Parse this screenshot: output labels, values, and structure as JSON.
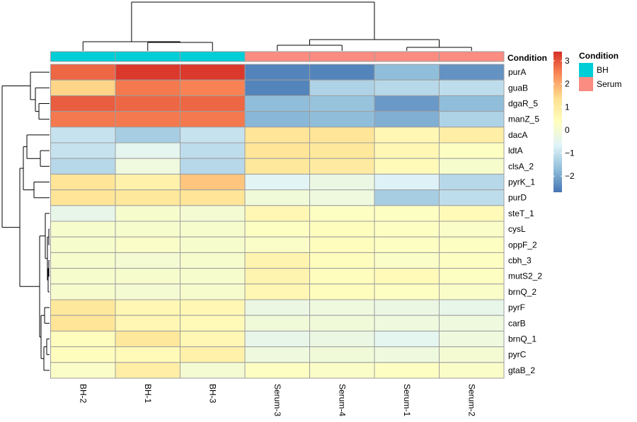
{
  "chart_data": {
    "type": "heatmap",
    "columns": [
      "BH-2",
      "BH-1",
      "BH-3",
      "Serum-3",
      "Serum-4",
      "Serum-1",
      "Serum-2"
    ],
    "rows": [
      "purA",
      "guaB",
      "dgaR_5",
      "manZ_5",
      "dacA",
      "ldtA",
      "clsA_2",
      "pyrK_1",
      "purD",
      "steT_1",
      "cysL",
      "oppF_2",
      "cbh_3",
      "mutS2_2",
      "brnQ_2",
      "pyrF",
      "carB",
      "brnQ_1",
      "pyrC",
      "gtaB_2"
    ],
    "values": [
      [
        2.8,
        3.3,
        3.3,
        -2.5,
        -2.5,
        -1.7,
        -2.3
      ],
      [
        1.5,
        2.6,
        2.5,
        -2.5,
        -1.3,
        -1.2,
        -1.1
      ],
      [
        2.9,
        2.8,
        2.8,
        -1.7,
        -1.6,
        -2.2,
        -1.7
      ],
      [
        2.6,
        2.6,
        2.6,
        -1.8,
        -1.7,
        -1.9,
        -1.3
      ],
      [
        -1.0,
        -1.4,
        -1.0,
        1.2,
        1.2,
        0.6,
        0.9
      ],
      [
        -1.0,
        -0.5,
        -1.1,
        1.2,
        1.1,
        0.6,
        0.3
      ],
      [
        -1.2,
        -0.2,
        -1.2,
        1.1,
        1.0,
        0.5,
        0.1
      ],
      [
        1.2,
        0.8,
        1.7,
        -0.6,
        -0.3,
        -0.7,
        -1.2
      ],
      [
        1.2,
        1.1,
        1.2,
        -0.1,
        -0.2,
        -1.4,
        -1.1
      ],
      [
        -0.4,
        0.1,
        0.0,
        0.6,
        0.3,
        0.3,
        0.5
      ],
      [
        0.1,
        0.1,
        0.1,
        0.3,
        0.4,
        0.3,
        0.2
      ],
      [
        0.1,
        0.2,
        0.1,
        0.2,
        0.4,
        0.3,
        0.3
      ],
      [
        0.1,
        0.0,
        0.1,
        0.7,
        0.4,
        0.2,
        0.3
      ],
      [
        0.1,
        0.1,
        0.1,
        0.7,
        0.4,
        0.5,
        0.3
      ],
      [
        0.1,
        0.0,
        0.1,
        0.6,
        0.4,
        0.3,
        0.2
      ],
      [
        1.1,
        0.6,
        0.6,
        -0.3,
        -0.2,
        -0.3,
        -0.4
      ],
      [
        1.2,
        0.6,
        0.5,
        -0.1,
        -0.1,
        -0.2,
        -0.2
      ],
      [
        0.4,
        1.1,
        0.6,
        -0.4,
        -0.3,
        -0.5,
        -0.2
      ],
      [
        0.4,
        0.5,
        0.8,
        -0.2,
        -0.1,
        -0.2,
        0.0
      ],
      [
        0.2,
        0.9,
        0.0,
        0.3,
        0.2,
        0.3,
        0.2
      ]
    ],
    "column_conditions": [
      "BH",
      "BH",
      "BH",
      "Serum",
      "Serum",
      "Serum",
      "Serum"
    ],
    "annotation_title": "Condition",
    "legend": {
      "title": "Condition",
      "entries": [
        {
          "label": "BH",
          "color": "#00CED7"
        },
        {
          "label": "Serum",
          "color": "#FA8C82"
        }
      ],
      "placement": "right"
    },
    "colorbar": {
      "ticks": [
        3,
        2,
        1,
        0,
        -1,
        -2
      ],
      "range": [
        -2.7,
        3.4
      ],
      "colors": [
        "#4575B4",
        "#91BFDB",
        "#E0F3F8",
        "#FFFFBF",
        "#FEE090",
        "#FC8D59",
        "#D73027"
      ]
    },
    "cell_border_color": "#9E9E9E",
    "dendrogram_color": "#000000"
  }
}
